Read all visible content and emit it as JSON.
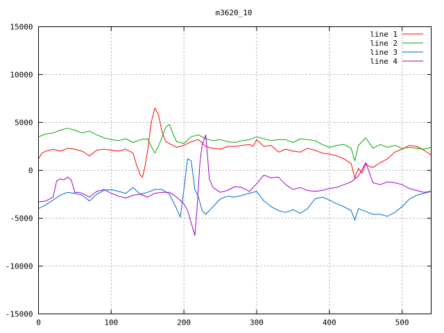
{
  "chart_data": {
    "type": "line",
    "title": "m3620_10",
    "xlabel": "",
    "ylabel": "",
    "xlim": [
      0,
      540
    ],
    "ylim": [
      -15000,
      15000
    ],
    "x_ticks": [
      0,
      100,
      200,
      300,
      400,
      500
    ],
    "y_ticks": [
      -15000,
      -10000,
      -5000,
      0,
      5000,
      10000,
      15000
    ],
    "grid": true,
    "legend_position": "top-right",
    "series": [
      {
        "name": "line 1",
        "color": "#ff0000",
        "x": [
          0,
          5,
          10,
          20,
          30,
          40,
          50,
          60,
          70,
          80,
          90,
          100,
          110,
          120,
          130,
          135,
          140,
          143,
          146,
          150,
          155,
          160,
          165,
          170,
          175,
          180,
          185,
          190,
          200,
          210,
          220,
          230,
          240,
          250,
          260,
          270,
          280,
          290,
          295,
          300,
          310,
          320,
          330,
          340,
          350,
          360,
          370,
          380,
          390,
          400,
          410,
          420,
          430,
          435,
          440,
          445,
          450,
          455,
          460,
          470,
          480,
          490,
          500,
          510,
          520,
          530,
          540
        ],
        "values": [
          1200,
          1800,
          2000,
          2200,
          2000,
          2300,
          2200,
          2000,
          1500,
          2100,
          2200,
          2100,
          2000,
          2200,
          1800,
          500,
          -500,
          -700,
          200,
          2000,
          5000,
          6500,
          5800,
          4000,
          3000,
          2800,
          2600,
          2400,
          2600,
          3000,
          3200,
          2500,
          2300,
          2200,
          2500,
          2500,
          2600,
          2700,
          2500,
          3200,
          2500,
          2600,
          1900,
          2200,
          2000,
          1900,
          2300,
          2100,
          1800,
          1700,
          1500,
          1200,
          700,
          -800,
          200,
          -300,
          700,
          400,
          300,
          800,
          1200,
          1900,
          2200,
          2600,
          2500,
          2100,
          1600
        ]
      },
      {
        "name": "line 2",
        "color": "#00aa00",
        "x": [
          0,
          10,
          20,
          30,
          40,
          50,
          60,
          70,
          80,
          90,
          100,
          110,
          120,
          130,
          140,
          150,
          155,
          160,
          165,
          170,
          175,
          180,
          185,
          190,
          200,
          210,
          220,
          230,
          240,
          250,
          260,
          270,
          280,
          290,
          300,
          310,
          320,
          330,
          340,
          350,
          360,
          370,
          380,
          390,
          400,
          410,
          420,
          430,
          435,
          440,
          450,
          460,
          470,
          480,
          490,
          500,
          510,
          520,
          530,
          540
        ],
        "values": [
          3500,
          3800,
          3900,
          4200,
          4400,
          4200,
          3900,
          4100,
          3700,
          3400,
          3200,
          3100,
          3300,
          2900,
          3200,
          3300,
          2500,
          1800,
          2500,
          3500,
          4500,
          4800,
          3800,
          3000,
          2800,
          3500,
          3700,
          3300,
          3100,
          3200,
          3000,
          2900,
          3100,
          3200,
          3500,
          3300,
          3100,
          3200,
          3200,
          2900,
          3300,
          3200,
          3100,
          2700,
          2400,
          2600,
          2700,
          2300,
          1000,
          2600,
          3400,
          2300,
          2700,
          2400,
          2600,
          2300,
          2400,
          2300,
          2200,
          2400
        ]
      },
      {
        "name": "line 3",
        "color": "#0066cc",
        "x": [
          0,
          10,
          20,
          30,
          40,
          50,
          60,
          70,
          80,
          90,
          100,
          110,
          120,
          130,
          140,
          150,
          160,
          170,
          180,
          190,
          195,
          200,
          205,
          210,
          215,
          220,
          225,
          230,
          240,
          250,
          260,
          270,
          280,
          290,
          300,
          310,
          320,
          330,
          340,
          350,
          360,
          370,
          380,
          390,
          400,
          410,
          420,
          430,
          435,
          440,
          450,
          460,
          470,
          480,
          490,
          500,
          510,
          520,
          530,
          540
        ],
        "values": [
          -4000,
          -3600,
          -3100,
          -2600,
          -2300,
          -2400,
          -2600,
          -3200,
          -2500,
          -2100,
          -2000,
          -2200,
          -2400,
          -1800,
          -2500,
          -2300,
          -2000,
          -2000,
          -2500,
          -4000,
          -4900,
          -2000,
          1200,
          1000,
          -2000,
          -2800,
          -4200,
          -4600,
          -3800,
          -3000,
          -2700,
          -2800,
          -2600,
          -2400,
          -2200,
          -3200,
          -3800,
          -4200,
          -4400,
          -4100,
          -4500,
          -4000,
          -3000,
          -2800,
          -3100,
          -3500,
          -3800,
          -4200,
          -5200,
          -4000,
          -4300,
          -4600,
          -4600,
          -4800,
          -4400,
          -3800,
          -3000,
          -2600,
          -2400,
          -2200
        ]
      },
      {
        "name": "line 4",
        "color": "#9900cc",
        "x": [
          0,
          10,
          20,
          25,
          30,
          35,
          40,
          45,
          50,
          55,
          60,
          70,
          80,
          90,
          100,
          110,
          120,
          130,
          140,
          150,
          160,
          170,
          180,
          190,
          200,
          205,
          210,
          215,
          218,
          222,
          225,
          230,
          235,
          240,
          250,
          260,
          270,
          280,
          290,
          300,
          310,
          320,
          330,
          340,
          350,
          360,
          370,
          380,
          390,
          400,
          410,
          420,
          430,
          440,
          450,
          460,
          470,
          480,
          490,
          500,
          510,
          520,
          530,
          540
        ],
        "values": [
          -3300,
          -3200,
          -2800,
          -1100,
          -900,
          -1000,
          -700,
          -1000,
          -2300,
          -2300,
          -2400,
          -2800,
          -2200,
          -2000,
          -2400,
          -2700,
          -2900,
          -2600,
          -2500,
          -2800,
          -2400,
          -2300,
          -2300,
          -2800,
          -3500,
          -4200,
          -5500,
          -6800,
          -4000,
          800,
          2600,
          3700,
          -900,
          -1800,
          -2300,
          -2100,
          -1700,
          -1800,
          -2200,
          -1400,
          -500,
          -800,
          -700,
          -1500,
          -2000,
          -1800,
          -2100,
          -2200,
          -2100,
          -1900,
          -1800,
          -1500,
          -1200,
          -600,
          800,
          -1300,
          -1500,
          -1200,
          -1300,
          -1500,
          -1900,
          -2100,
          -2300,
          -2200
        ]
      }
    ]
  }
}
